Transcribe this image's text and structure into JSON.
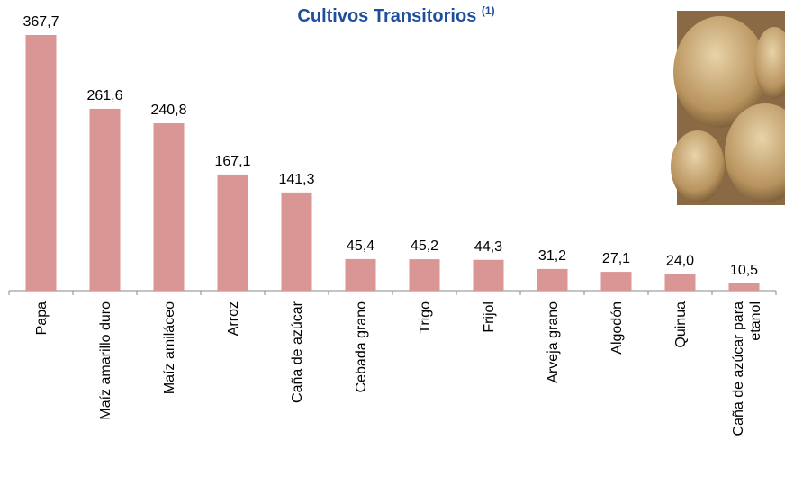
{
  "chart_data": {
    "type": "bar",
    "title": "Cultivos Transitorios",
    "title_note": "(1)",
    "categories": [
      "Papa",
      "Maíz amarillo duro",
      "Maíz amiláceo",
      "Arroz",
      "Caña de azúcar",
      "Cebada grano",
      "Trigo",
      "Frijol",
      "Arveja grano",
      "Algodón",
      "Quinua",
      "Caña de azúcar para etanol"
    ],
    "values": [
      367.7,
      261.6,
      240.8,
      167.1,
      141.3,
      45.4,
      45.2,
      44.3,
      31.2,
      27.1,
      24.0,
      10.5
    ],
    "value_labels": [
      "367,7",
      "261,6",
      "240,8",
      "167,1",
      "141,3",
      "45,4",
      "45,2",
      "44,3",
      "31,2",
      "27,1",
      "24,0",
      "10,5"
    ],
    "color": "#d99694"
  }
}
